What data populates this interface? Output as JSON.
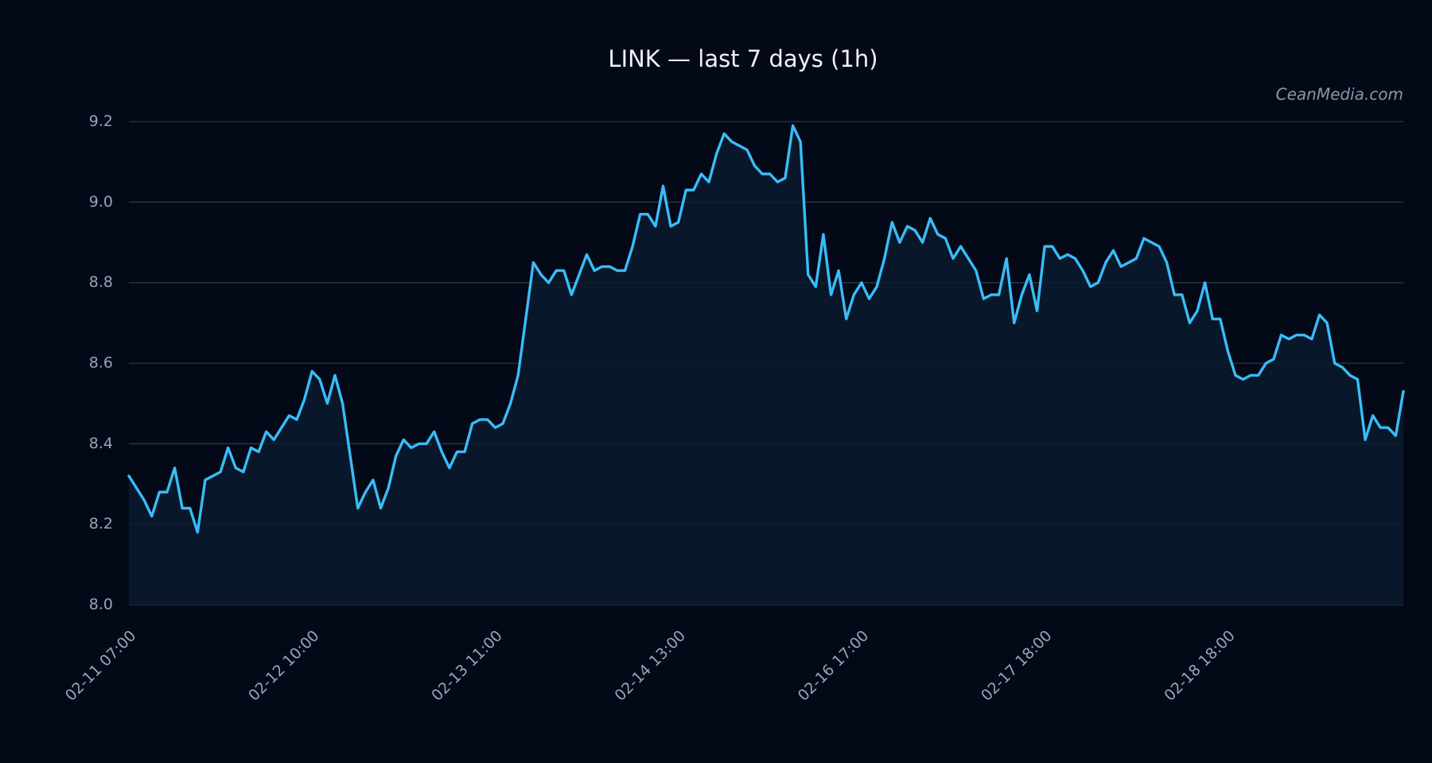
{
  "chart_data": {
    "type": "line",
    "title": "LINK — last 7 days (1h)",
    "watermark": "CeanMedia.com",
    "categories": [
      "02-11 07:00",
      null,
      null,
      null,
      null,
      null,
      null,
      null,
      null,
      null,
      null,
      null,
      null,
      null,
      null,
      null,
      null,
      null,
      null,
      null,
      null,
      null,
      null,
      null,
      "02-12 10:00",
      null,
      null,
      null,
      null,
      null,
      null,
      null,
      null,
      null,
      null,
      null,
      null,
      null,
      null,
      null,
      null,
      null,
      null,
      null,
      null,
      null,
      null,
      null,
      "02-13 11:00",
      null,
      null,
      null,
      null,
      null,
      null,
      null,
      null,
      null,
      null,
      null,
      null,
      null,
      null,
      null,
      null,
      null,
      null,
      null,
      null,
      null,
      null,
      null,
      "02-14 13:00",
      null,
      null,
      null,
      null,
      null,
      null,
      null,
      null,
      null,
      null,
      null,
      null,
      null,
      null,
      null,
      null,
      null,
      null,
      null,
      null,
      null,
      null,
      null,
      "02-16 17:00",
      null,
      null,
      null,
      null,
      null,
      null,
      null,
      null,
      null,
      null,
      null,
      null,
      null,
      null,
      null,
      null,
      null,
      null,
      null,
      null,
      null,
      null,
      null,
      "02-17 18:00",
      null,
      null,
      null,
      null,
      null,
      null,
      null,
      null,
      null,
      null,
      null,
      null,
      null,
      null,
      null,
      null,
      null,
      null,
      null,
      null,
      null,
      null,
      null,
      "02-18 18:00",
      null,
      null,
      null,
      null,
      null,
      null,
      null,
      null,
      null,
      null,
      null,
      null,
      null,
      null,
      null,
      null,
      null,
      null,
      null,
      null,
      null,
      null,
      null
    ],
    "values": [
      8.32,
      8.29,
      8.26,
      8.22,
      8.28,
      8.28,
      8.34,
      8.24,
      8.24,
      8.18,
      8.31,
      8.32,
      8.33,
      8.39,
      8.34,
      8.33,
      8.39,
      8.38,
      8.43,
      8.41,
      8.44,
      8.47,
      8.46,
      8.51,
      8.58,
      8.56,
      8.5,
      8.57,
      8.5,
      8.37,
      8.24,
      8.28,
      8.31,
      8.24,
      8.29,
      8.37,
      8.41,
      8.39,
      8.4,
      8.4,
      8.43,
      8.38,
      8.34,
      8.38,
      8.38,
      8.45,
      8.46,
      8.46,
      8.44,
      8.45,
      8.5,
      8.57,
      8.71,
      8.85,
      8.82,
      8.8,
      8.83,
      8.83,
      8.77,
      8.82,
      8.87,
      8.83,
      8.84,
      8.84,
      8.83,
      8.83,
      8.89,
      8.97,
      8.97,
      8.94,
      9.04,
      8.94,
      8.95,
      9.03,
      9.03,
      9.07,
      9.05,
      9.12,
      9.17,
      9.15,
      9.14,
      9.13,
      9.09,
      9.07,
      9.07,
      9.05,
      9.06,
      9.19,
      9.15,
      8.82,
      8.79,
      8.92,
      8.77,
      8.83,
      8.71,
      8.77,
      8.8,
      8.76,
      8.79,
      8.86,
      8.95,
      8.9,
      8.94,
      8.93,
      8.9,
      8.96,
      8.92,
      8.91,
      8.86,
      8.89,
      8.86,
      8.83,
      8.76,
      8.77,
      8.77,
      8.86,
      8.7,
      8.77,
      8.82,
      8.73,
      8.89,
      8.89,
      8.86,
      8.87,
      8.86,
      8.83,
      8.79,
      8.8,
      8.85,
      8.88,
      8.84,
      8.85,
      8.86,
      8.91,
      8.9,
      8.89,
      8.85,
      8.77,
      8.77,
      8.7,
      8.73,
      8.8,
      8.71,
      8.71,
      8.63,
      8.57,
      8.56,
      8.57,
      8.57,
      8.6,
      8.61,
      8.67,
      8.66,
      8.67,
      8.67,
      8.66,
      8.72,
      8.7,
      8.6,
      8.59,
      8.57,
      8.56,
      8.41,
      8.47,
      8.44,
      8.44,
      8.42,
      8.53
    ],
    "color": "#38bdf8",
    "ylim": [
      8,
      9.2
    ],
    "yticks": [
      {
        "value": 8,
        "label": "8.0"
      },
      8.2,
      8.4,
      8.6,
      8.8,
      {
        "value": 9,
        "label": "9.0"
      },
      9.2
    ],
    "grid": true
  }
}
